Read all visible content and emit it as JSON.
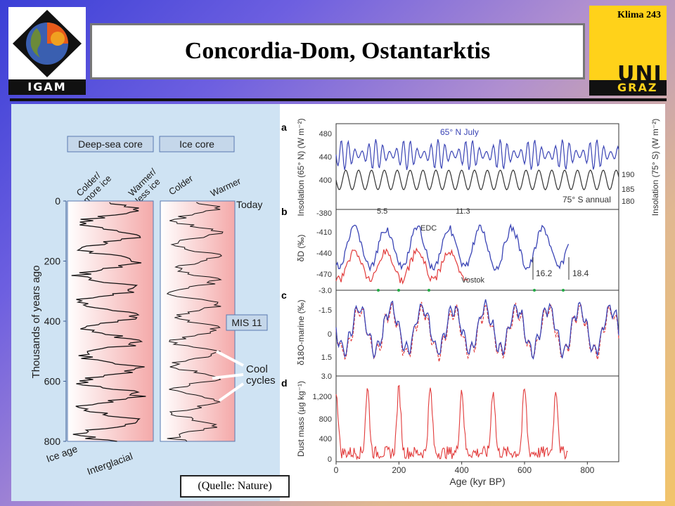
{
  "header": {
    "title": "Concordia-Dom, Ostantarktis",
    "slide_number": "Klima 243",
    "logo_left": "IGAM",
    "logo_right_top": "UNI",
    "logo_right_bottom": "GRAZ"
  },
  "source": "(Quelle: Nature)",
  "colors": {
    "blue_series": "#3a44b5",
    "red_series": "#e23b3b",
    "left_bg": "#cfe3f3",
    "band": "#f6b3b3"
  },
  "chart_data": [
    {
      "type": "line",
      "panel": "left",
      "column_headers": [
        "Deep-sea core",
        "Ice core"
      ],
      "col1_top_labels": [
        "Colder/\nmore ice",
        "Warmer/\nless ice"
      ],
      "col2_top_labels": [
        "Colder",
        "Warmer"
      ],
      "ylabel": "Thousands of years ago",
      "yticks": [
        0,
        200,
        400,
        600,
        800
      ],
      "ylim": [
        0,
        800
      ],
      "bottom_labels": [
        "Ice age",
        "Interglacial"
      ],
      "today_label": "Today",
      "mis_label": "MIS 11",
      "cool_label": "Cool\ncycles"
    },
    {
      "type": "line",
      "panel": "a",
      "left_ylabel": "Insolation (65° N) (W m⁻²)",
      "right_ylabel": "Insolation (75° S) (W m⁻²)",
      "left_ticks": [
        400,
        440,
        480
      ],
      "right_ticks": [
        180,
        185,
        190
      ],
      "series": [
        {
          "name": "65° N July"
        },
        {
          "name": "75° S annual"
        }
      ]
    },
    {
      "type": "line",
      "panel": "b",
      "ylabel": "δD (‰)",
      "yticks": [
        -380,
        -410,
        -440,
        -470
      ],
      "ybottom": "-3.0",
      "series": [
        {
          "name": "EDC"
        },
        {
          "name": "Vostok"
        }
      ],
      "annotations": [
        "5.5",
        "11.3",
        "16.2",
        "18.4"
      ]
    },
    {
      "type": "line",
      "panel": "c",
      "ylabel": "δ18O-marine (‰)",
      "yticks": [
        -1.5,
        0,
        1.5
      ],
      "ybottom": "3.0"
    },
    {
      "type": "line",
      "panel": "d",
      "ylabel": "Dust mass (µg kg⁻¹)",
      "yticks": [
        "0",
        "400",
        "800",
        "1,200"
      ],
      "xlabel": "Age (kyr BP)",
      "xticks": [
        0,
        200,
        400,
        600,
        800
      ],
      "xlim": [
        0,
        900
      ]
    }
  ]
}
